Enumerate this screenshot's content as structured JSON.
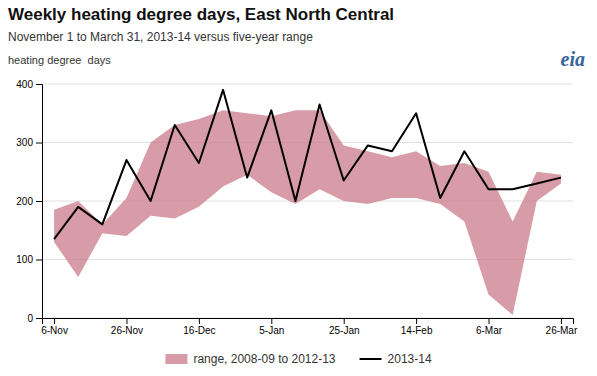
{
  "chart_data": {
    "type": "line",
    "title": "Weekly heating degree days, East North Central",
    "subtitle": "November 1 to March 31, 2013-14 versus five-year range",
    "y_label": "heating degree  days",
    "annotations": [
      "eia"
    ],
    "categories": [
      "6-Nov",
      null,
      null,
      "26-Nov",
      null,
      null,
      "16-Dec",
      null,
      null,
      "5-Jan",
      null,
      null,
      "25-Jan",
      null,
      null,
      "14-Feb",
      null,
      null,
      "6-Mar",
      null,
      null,
      "26-Mar"
    ],
    "series": [
      {
        "name": "range, 2008-09 to 2012-13",
        "type": "area",
        "color": "#c97b8a",
        "lower": [
          130,
          70,
          145,
          140,
          175,
          170,
          190,
          225,
          245,
          215,
          195,
          220,
          200,
          195,
          205,
          205,
          195,
          165,
          40,
          5,
          200,
          230
        ],
        "upper": [
          185,
          200,
          160,
          205,
          300,
          330,
          340,
          355,
          350,
          345,
          355,
          355,
          295,
          285,
          275,
          285,
          260,
          265,
          250,
          165,
          250,
          245
        ]
      },
      {
        "name": "2013-14",
        "type": "line",
        "color": "#000000",
        "values": [
          135,
          190,
          160,
          270,
          200,
          330,
          265,
          390,
          240,
          355,
          200,
          365,
          235,
          295,
          285,
          350,
          205,
          285,
          220,
          220,
          230,
          240
        ]
      }
    ],
    "ylim": [
      0,
      400
    ],
    "yticks": [
      0,
      100,
      200,
      300,
      400
    ],
    "grid": true,
    "legend": "bottom"
  }
}
